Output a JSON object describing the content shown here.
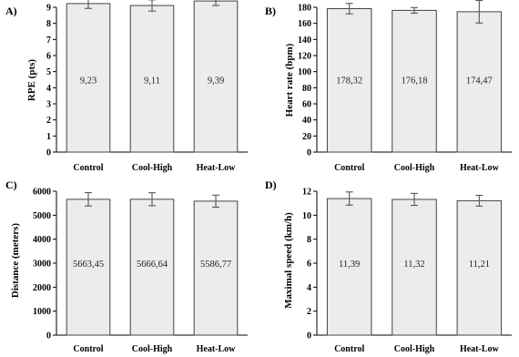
{
  "chart_data": [
    {
      "type": "bar",
      "panel": "A)",
      "categories": [
        "Control",
        "Cool-High",
        "Heat-Low"
      ],
      "values": [
        9.23,
        9.11,
        9.39
      ],
      "value_labels": [
        "9,23",
        "9,11",
        "9,39"
      ],
      "errors": [
        0.3,
        0.35,
        0.28
      ],
      "ylabel": "RPE (pts)",
      "ylim": [
        0,
        9
      ],
      "yticks": [
        0,
        1,
        2,
        3,
        4,
        5,
        6,
        7,
        8,
        9
      ]
    },
    {
      "type": "bar",
      "panel": "B)",
      "categories": [
        "Control",
        "Cool-High",
        "Heat-Low"
      ],
      "values": [
        178.32,
        176.18,
        174.47
      ],
      "value_labels": [
        "178,32",
        "176,18",
        "174,47"
      ],
      "errors": [
        6.5,
        3.5,
        14
      ],
      "ylabel": "Heart rate (bpm)",
      "ylim": [
        0,
        180
      ],
      "yticks": [
        0,
        20,
        40,
        60,
        80,
        100,
        120,
        140,
        160,
        180
      ]
    },
    {
      "type": "bar",
      "panel": "C)",
      "categories": [
        "Control",
        "Cool-High",
        "Heat-Low"
      ],
      "values": [
        5663.45,
        5666.64,
        5586.77
      ],
      "value_labels": [
        "5663,45",
        "5666,64",
        "5586,77"
      ],
      "errors": [
        280,
        270,
        250
      ],
      "ylabel": "Distance (meters)",
      "ylim": [
        0,
        6000
      ],
      "yticks": [
        0,
        1000,
        2000,
        3000,
        4000,
        5000,
        6000
      ]
    },
    {
      "type": "bar",
      "panel": "D)",
      "categories": [
        "Control",
        "Cool-High",
        "Heat-Low"
      ],
      "values": [
        11.39,
        11.32,
        11.21
      ],
      "value_labels": [
        "11,39",
        "11,32",
        "11,21"
      ],
      "errors": [
        0.55,
        0.5,
        0.45
      ],
      "ylabel": "Maximal speed (km/h)",
      "ylim": [
        0,
        12
      ],
      "yticks": [
        0,
        2,
        4,
        6,
        8,
        10,
        12
      ]
    }
  ]
}
